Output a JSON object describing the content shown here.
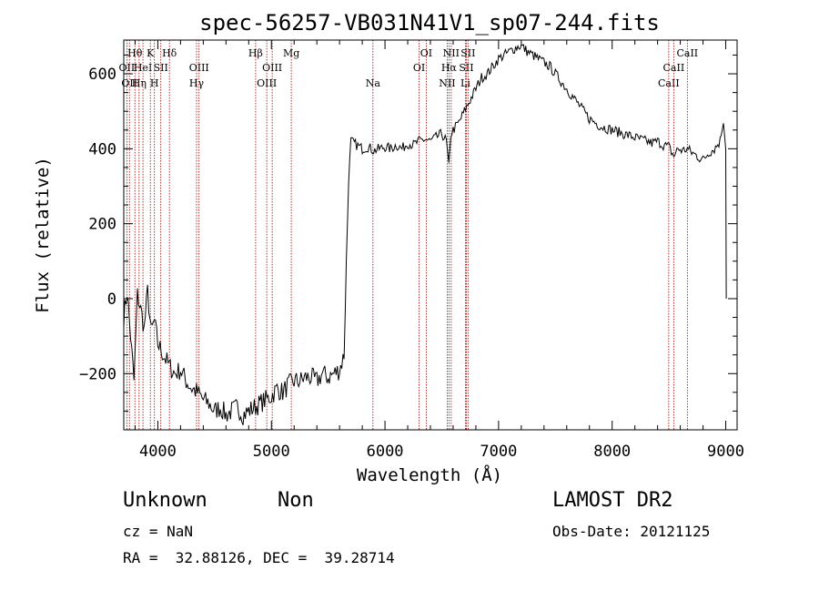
{
  "chart_data": {
    "type": "line",
    "title": "spec-56257-VB031N41V1_sp07-244.fits",
    "xlabel": "Wavelength (Å)",
    "ylabel": "Flux (relative)",
    "xlim": [
      3700,
      9100
    ],
    "ylim": [
      -350,
      690
    ],
    "x_ticks": [
      4000,
      5000,
      6000,
      7000,
      8000,
      9000
    ],
    "y_ticks": [
      -200,
      0,
      200,
      400,
      600
    ],
    "x_tick_labels": [
      "4000",
      "5000",
      "6000",
      "7000",
      "8000",
      "9000"
    ],
    "y_tick_labels": [
      "−200",
      "0",
      "200",
      "400",
      "600"
    ],
    "grid": false,
    "series": [
      {
        "line_color": "#000000",
        "x": [
          3700,
          3730,
          3760,
          3790,
          3820,
          3850,
          3880,
          3910,
          3940,
          3970,
          4000,
          4050,
          4100,
          4150,
          4200,
          4250,
          4300,
          4350,
          4400,
          4450,
          4500,
          4550,
          4600,
          4650,
          4700,
          4750,
          4800,
          4850,
          4900,
          4950,
          5000,
          5050,
          5100,
          5150,
          5200,
          5250,
          5300,
          5350,
          5400,
          5450,
          5500,
          5550,
          5600,
          5640,
          5660,
          5680,
          5700,
          5750,
          5800,
          5850,
          5900,
          5950,
          6000,
          6050,
          6100,
          6150,
          6200,
          6250,
          6300,
          6350,
          6400,
          6450,
          6500,
          6540,
          6563,
          6580,
          6600,
          6650,
          6700,
          6750,
          6800,
          6850,
          6900,
          6950,
          7000,
          7050,
          7100,
          7150,
          7200,
          7250,
          7300,
          7350,
          7400,
          7450,
          7500,
          7550,
          7600,
          7650,
          7700,
          7750,
          7800,
          7850,
          7900,
          7950,
          8000,
          8050,
          8100,
          8150,
          8200,
          8250,
          8300,
          8350,
          8400,
          8450,
          8500,
          8542,
          8580,
          8620,
          8662,
          8700,
          8750,
          8800,
          8850,
          8900,
          8950,
          8980,
          9000,
          9005
        ],
        "y": [
          -50,
          20,
          -100,
          -220,
          10,
          -30,
          -80,
          20,
          -90,
          -60,
          -120,
          -150,
          -180,
          -200,
          -190,
          -220,
          -240,
          -250,
          -270,
          -280,
          -300,
          -290,
          -310,
          -300,
          -290,
          -310,
          -300,
          -290,
          -280,
          -270,
          -260,
          -240,
          -250,
          -230,
          -220,
          -220,
          -210,
          -210,
          -220,
          -200,
          -210,
          -200,
          -190,
          -150,
          100,
          320,
          420,
          410,
          400,
          405,
          395,
          400,
          405,
          400,
          410,
          400,
          415,
          410,
          420,
          425,
          420,
          430,
          440,
          420,
          350,
          440,
          450,
          470,
          500,
          530,
          560,
          590,
          600,
          620,
          640,
          650,
          660,
          670,
          675,
          660,
          650,
          640,
          630,
          620,
          600,
          580,
          560,
          540,
          520,
          500,
          480,
          470,
          460,
          455,
          450,
          445,
          440,
          435,
          430,
          425,
          420,
          415,
          420,
          410,
          405,
          380,
          400,
          395,
          400,
          390,
          380,
          370,
          390,
          400,
          420,
          470,
          400,
          0
        ]
      }
    ],
    "line_markers": [
      {
        "wavelength": 3727,
        "label": "OII",
        "tier": 2
      },
      {
        "wavelength": 3750,
        "label": "OII",
        "tier": 3
      },
      {
        "wavelength": 3798,
        "label": "Hθ",
        "tier": 1
      },
      {
        "wavelength": 3835,
        "label": "Hη",
        "tier": 3
      },
      {
        "wavelength": 3869,
        "label": "HeI",
        "tier": 2
      },
      {
        "wavelength": 3934,
        "label": "K",
        "tier": 1
      },
      {
        "wavelength": 3970,
        "label": "H",
        "tier": 3
      },
      {
        "wavelength": 4026,
        "label": "SII",
        "tier": 2
      },
      {
        "wavelength": 4102,
        "label": "Hδ",
        "tier": 1
      },
      {
        "wavelength": 4341,
        "label": "Hγ",
        "tier": 3
      },
      {
        "wavelength": 4363,
        "label": "OIII",
        "tier": 2
      },
      {
        "wavelength": 4861,
        "label": "Hβ",
        "tier": 1
      },
      {
        "wavelength": 4959,
        "label": "OIII",
        "tier": 3
      },
      {
        "wavelength": 5007,
        "label": "OIII",
        "tier": 2
      },
      {
        "wavelength": 5175,
        "label": "Mg",
        "tier": 1
      },
      {
        "wavelength": 5894,
        "label": "Na",
        "tier": 3
      },
      {
        "wavelength": 6300,
        "label": "OI",
        "tier": 2
      },
      {
        "wavelength": 6363,
        "label": "OI",
        "tier": 1
      },
      {
        "wavelength": 6548,
        "label": "NII",
        "tier": 3
      },
      {
        "wavelength": 6563,
        "label": "Hα",
        "tier": 2
      },
      {
        "wavelength": 6583,
        "label": "NII",
        "tier": 1
      },
      {
        "wavelength": 6708,
        "label": "Li",
        "tier": 3
      },
      {
        "wavelength": 6716,
        "label": "SII",
        "tier": 2
      },
      {
        "wavelength": 6731,
        "label": "SII",
        "tier": 1
      },
      {
        "wavelength": 8498,
        "label": "CaII",
        "tier": 3
      },
      {
        "wavelength": 8542,
        "label": "CaII",
        "tier": 2
      },
      {
        "wavelength": 8662,
        "label": "CaII",
        "tier": 1
      }
    ],
    "marker_color": "#a00000"
  },
  "footer": {
    "object_class": "Unknown",
    "object_subclass": "Non",
    "survey": "LAMOST DR2",
    "cz": "cz = NaN",
    "obs_date": "Obs-Date: 20121125",
    "ra_dec": "RA =  32.88126, DEC =  39.28714"
  }
}
